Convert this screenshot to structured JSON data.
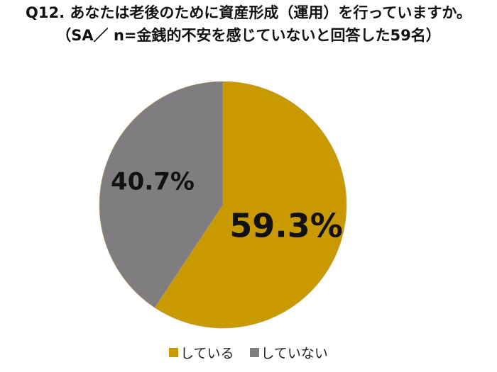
{
  "chart_data": {
    "type": "pie",
    "title": "Q12. あなたは老後のために資産形成（運用）を行っていますか。",
    "subtitle": "（SA／ n=金銭的不安を感じていないと回答した59名）",
    "categories": [
      "している",
      "していない"
    ],
    "values": [
      59.3,
      40.7
    ],
    "data_labels": [
      "59.3%",
      "40.7%"
    ],
    "colors": [
      "#C99A00",
      "#807D81"
    ],
    "start": "top, clockwise",
    "legend_position": "bottom"
  }
}
